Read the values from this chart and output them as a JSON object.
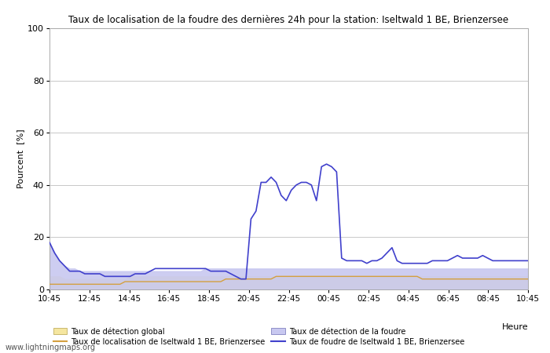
{
  "title": "Taux de localisation de la foudre des dernières 24h pour la station: Iseltwald 1 BE, Brienzersee",
  "ylabel": "Pourcent  [%]",
  "xlabel": "Heure",
  "watermark": "www.lightningmaps.org",
  "ylim": [
    0,
    100
  ],
  "yticks": [
    0,
    20,
    40,
    60,
    80,
    100
  ],
  "xtick_labels": [
    "10:45",
    "12:45",
    "14:45",
    "16:45",
    "18:45",
    "20:45",
    "22:45",
    "00:45",
    "02:45",
    "04:45",
    "06:45",
    "08:45",
    "10:45"
  ],
  "background_color": "#ffffff",
  "plot_bg_color": "#ffffff",
  "grid_color": "#c8c8c8",
  "global_detection": [
    5,
    5,
    5,
    4,
    4,
    4,
    4,
    4,
    4,
    4,
    4,
    4,
    4,
    4,
    4,
    4,
    5,
    5,
    5,
    5,
    5,
    5,
    5,
    5,
    5,
    5,
    5,
    5,
    5,
    5,
    5,
    5,
    5,
    5,
    5,
    5,
    5,
    5,
    5,
    5,
    5,
    5,
    5,
    5,
    5,
    5,
    5,
    5,
    5,
    5,
    5,
    5,
    5,
    5,
    5,
    5,
    5,
    5,
    5,
    5,
    5,
    5,
    5,
    5,
    5,
    5,
    5,
    5,
    5,
    5,
    5,
    5,
    5,
    5,
    5,
    5,
    5,
    5,
    5,
    5,
    5,
    5,
    5,
    5,
    5,
    5,
    5,
    5,
    5,
    5,
    5,
    5,
    5,
    5,
    5,
    5
  ],
  "local_detection": [
    18,
    14,
    11,
    9,
    8,
    8,
    7,
    7,
    7,
    7,
    7,
    7,
    7,
    7,
    7,
    7,
    7,
    7,
    7,
    7,
    7,
    7,
    7,
    7,
    7,
    7,
    7,
    7,
    7,
    7,
    7,
    8,
    8,
    8,
    8,
    8,
    8,
    8,
    8,
    8,
    8,
    8,
    8,
    8,
    8,
    8,
    8,
    8,
    8,
    8,
    8,
    8,
    8,
    8,
    8,
    8,
    8,
    8,
    8,
    8,
    8,
    8,
    8,
    8,
    8,
    8,
    8,
    8,
    8,
    8,
    8,
    8,
    8,
    8,
    8,
    8,
    8,
    8,
    8,
    8,
    8,
    8,
    8,
    8,
    8,
    8,
    8,
    8,
    8,
    8,
    8,
    8,
    8,
    8,
    8,
    8
  ],
  "global_rate_line": [
    2,
    2,
    2,
    2,
    2,
    2,
    2,
    2,
    2,
    2,
    2,
    2,
    2,
    2,
    2,
    3,
    3,
    3,
    3,
    3,
    3,
    3,
    3,
    3,
    3,
    3,
    3,
    3,
    3,
    3,
    3,
    3,
    3,
    3,
    3,
    4,
    4,
    4,
    4,
    4,
    4,
    4,
    4,
    4,
    4,
    5,
    5,
    5,
    5,
    5,
    5,
    5,
    5,
    5,
    5,
    5,
    5,
    5,
    5,
    5,
    5,
    5,
    5,
    5,
    5,
    5,
    5,
    5,
    5,
    5,
    5,
    5,
    5,
    5,
    4,
    4,
    4,
    4,
    4,
    4,
    4,
    4,
    4,
    4,
    4,
    4,
    4,
    4,
    4,
    4,
    4,
    4,
    4,
    4,
    4,
    4
  ],
  "local_rate_line": [
    18,
    14,
    11,
    9,
    7,
    7,
    7,
    6,
    6,
    6,
    6,
    5,
    5,
    5,
    5,
    5,
    5,
    6,
    6,
    6,
    7,
    8,
    8,
    8,
    8,
    8,
    8,
    8,
    8,
    8,
    8,
    8,
    7,
    7,
    7,
    7,
    6,
    5,
    4,
    4,
    27,
    30,
    41,
    41,
    43,
    41,
    36,
    34,
    38,
    40,
    41,
    41,
    40,
    34,
    47,
    48,
    47,
    45,
    12,
    11,
    11,
    11,
    11,
    10,
    11,
    11,
    12,
    14,
    16,
    11,
    10,
    10,
    10,
    10,
    10,
    10,
    11,
    11,
    11,
    11,
    12,
    13,
    12,
    12,
    12,
    12,
    13,
    12,
    11,
    11,
    11,
    11,
    11,
    11,
    11,
    11
  ]
}
